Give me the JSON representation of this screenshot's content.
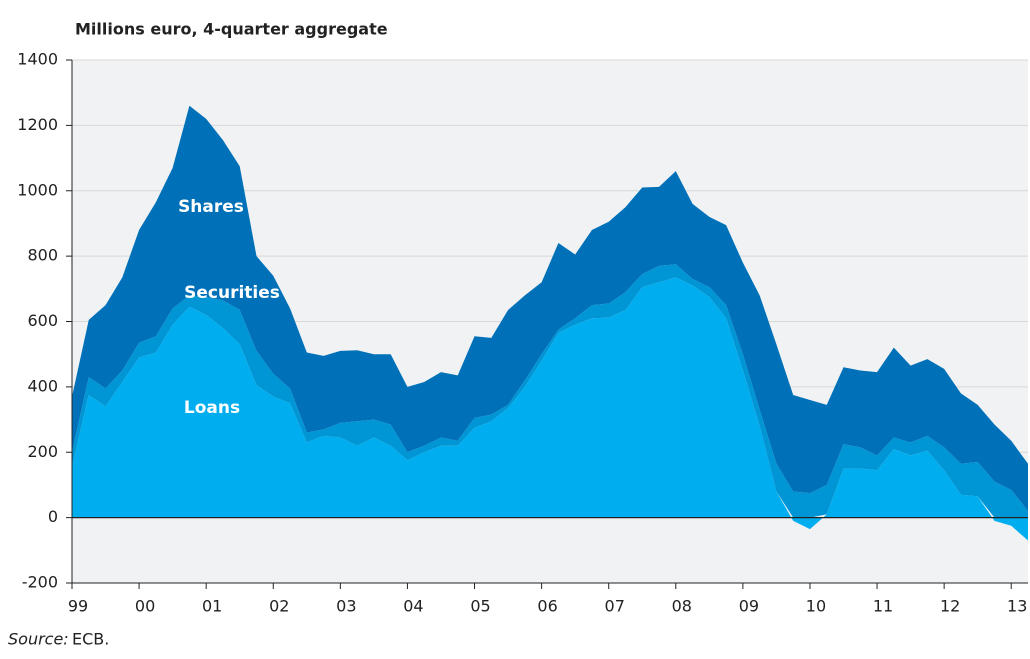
{
  "chart_data": {
    "type": "stacked-area",
    "title": "Millions euro, 4-quarter aggregate",
    "source_label": "Source:",
    "source": "ECB.",
    "x": [
      1999,
      1999.25,
      1999.5,
      1999.75,
      2000,
      2000.25,
      2000.5,
      2000.75,
      2001,
      2001.25,
      2001.5,
      2001.75,
      2002,
      2002.25,
      2002.5,
      2002.75,
      2003,
      2003.25,
      2003.5,
      2003.75,
      2004,
      2004.25,
      2004.5,
      2004.75,
      2005,
      2005.25,
      2005.5,
      2005.75,
      2006,
      2006.25,
      2006.5,
      2006.75,
      2007,
      2007.25,
      2007.5,
      2007.75,
      2008,
      2008.25,
      2008.5,
      2008.75,
      2009,
      2009.25,
      2009.5,
      2009.75,
      2010,
      2010.25,
      2010.5,
      2010.75,
      2011,
      2011.25,
      2011.5,
      2011.75,
      2012,
      2012.25,
      2012.5,
      2012.75,
      2013,
      2013.25
    ],
    "series": [
      {
        "name": "Loans",
        "color": "#00aeef",
        "values": [
          155,
          375,
          340,
          415,
          490,
          505,
          590,
          645,
          620,
          580,
          530,
          405,
          370,
          350,
          230,
          250,
          245,
          220,
          245,
          220,
          175,
          200,
          220,
          220,
          275,
          295,
          335,
          400,
          480,
          565,
          590,
          610,
          612,
          635,
          705,
          720,
          735,
          710,
          675,
          610,
          450,
          280,
          80,
          -10,
          -35,
          10,
          150,
          150,
          145,
          210,
          190,
          205,
          145,
          70,
          65,
          -10,
          -25,
          -70
        ]
      },
      {
        "name": "Securities",
        "color": "#0096d6",
        "values": [
          45,
          55,
          55,
          35,
          45,
          50,
          50,
          35,
          55,
          85,
          105,
          105,
          70,
          45,
          30,
          20,
          45,
          75,
          55,
          65,
          25,
          20,
          25,
          15,
          30,
          20,
          10,
          20,
          20,
          10,
          20,
          40,
          43,
          55,
          40,
          50,
          40,
          20,
          30,
          40,
          50,
          50,
          85,
          80,
          75,
          90,
          75,
          65,
          45,
          35,
          40,
          45,
          70,
          95,
          105,
          110,
          85,
          20
        ]
      },
      {
        "name": "Shares",
        "color": "#0071b9",
        "values": [
          170,
          175,
          255,
          285,
          345,
          410,
          430,
          580,
          545,
          490,
          440,
          290,
          300,
          245,
          245,
          225,
          220,
          217,
          200,
          215,
          200,
          195,
          200,
          200,
          250,
          235,
          290,
          260,
          220,
          265,
          195,
          230,
          250,
          260,
          265,
          242,
          285,
          230,
          215,
          245,
          280,
          350,
          365,
          295,
          285,
          245,
          235,
          235,
          255,
          275,
          235,
          235,
          240,
          215,
          175,
          175,
          150,
          145
        ]
      }
    ],
    "xlim": [
      1999,
      2013.25
    ],
    "xticks": [
      {
        "value": 1999,
        "label": "99"
      },
      {
        "value": 2000,
        "label": "00"
      },
      {
        "value": 2001,
        "label": "01"
      },
      {
        "value": 2002,
        "label": "02"
      },
      {
        "value": 2003,
        "label": "03"
      },
      {
        "value": 2004,
        "label": "04"
      },
      {
        "value": 2005,
        "label": "05"
      },
      {
        "value": 2006,
        "label": "06"
      },
      {
        "value": 2007,
        "label": "07"
      },
      {
        "value": 2008,
        "label": "08"
      },
      {
        "value": 2009,
        "label": "09"
      },
      {
        "value": 2010,
        "label": "10"
      },
      {
        "value": 2011,
        "label": "11"
      },
      {
        "value": 2012,
        "label": "12"
      },
      {
        "value": 2013,
        "label": "13"
      }
    ],
    "ylim": [
      -200,
      1400
    ],
    "yticks": [
      -200,
      0,
      200,
      400,
      600,
      800,
      1000,
      1200,
      1400
    ],
    "grid": true
  }
}
